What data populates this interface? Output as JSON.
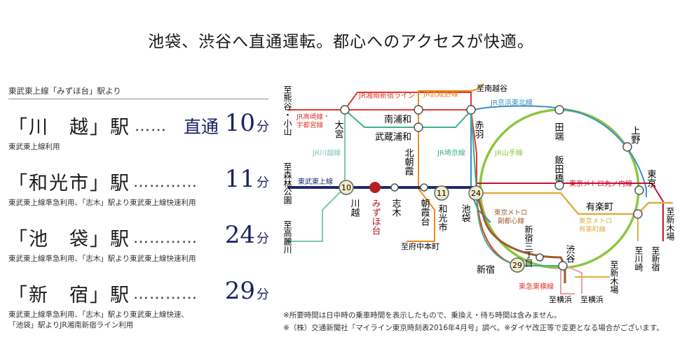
{
  "headline": "池袋、渋谷へ直通運転。都心へのアクセスが快適。",
  "lead": "東武東上線「みずほ台」駅より",
  "routes": [
    {
      "station": "「川　越」駅",
      "dots": "……",
      "tag": "直通",
      "time": "10",
      "unit": "分",
      "notes": [
        "東武東上線利用"
      ]
    },
    {
      "station": "「和光市」駅",
      "dots": "…………",
      "tag": "",
      "time": "11",
      "unit": "分",
      "notes": [
        "東武東上線準急利用、「志木」駅より東武東上線快速利用"
      ]
    },
    {
      "station": "「池　袋」駅",
      "dots": "…………",
      "tag": "",
      "time": "24",
      "unit": "分",
      "notes": [
        "東武東上線準急利用、「志木」駅より東武東上線快速利用"
      ]
    },
    {
      "station": "「新　宿」駅",
      "dots": "…………",
      "tag": "",
      "time": "29",
      "unit": "分",
      "notes": [
        "東武東上線準急利用、「志木」駅より東武東上線快速、",
        "「池袋」駅よりJR湘南新宿ライン利用"
      ]
    }
  ],
  "footnotes": [
    "※所要時間は日中時の乗車時間を表示したもので、乗換え・待ち時間は含みません。",
    "※（株）交通新聞社「マイライン東京時刻表2016年4月号」調べ。※ダイヤ改正等で変更となる場合がございます。"
  ],
  "map": {
    "colors": {
      "tobu": "#1d2a6b",
      "yamanote": "#8cc63f",
      "shonan": "#e03a2f",
      "musashino": "#f08a1e",
      "keihin": "#3a8fc6",
      "saikyo": "#3fb08a",
      "kawagoe": "#7fc3b8",
      "takasaki": "#e03a2f",
      "marunouchi": "#c8102e",
      "yurakucho": "#d9b040",
      "fukutoshin": "#9c5b2e",
      "toyoko": "#e8a19a",
      "mizuhodai": "#b22222",
      "stroke_station": "#555555",
      "badge_fill": "#f1ebc8"
    },
    "line_labels": {
      "shonan": "JR湘南新宿ライン",
      "musashino": "JR武蔵野線",
      "keihin": "JR京浜東北線",
      "takasaki": "JR高崎線・宇都宮線",
      "takasaki_1": "JR高崎線・",
      "takasaki_2": "宇都宮線",
      "kawagoe": "JR川越線",
      "saikyo": "JR埼京線",
      "yamanote": "JR山手線",
      "tobu": "東武東上線",
      "marunouchi": "東京メトロ丸ノ内線",
      "fukutoshin": "東京メトロ副都心線",
      "fukutoshin_1": "東京メトロ",
      "fukutoshin_2": "副都心線",
      "yurakucho": "東京メトロ有楽町線",
      "yurakucho_1": "東京メトロ",
      "yurakucho_2": "有楽町線",
      "toyoko": "東急東横線"
    },
    "stations": {
      "omiya": "大宮",
      "minamiurawa": "南浦和",
      "musashiurawa": "武蔵浦和",
      "akabane": "赤羽",
      "kitaasaka": "北朝霞",
      "asakadai": "朝霞台",
      "kawagoe": "川越",
      "mizuhodai": "みずほ台",
      "shiki": "志木",
      "wakoshi": "和光市",
      "ikebukuro": "池袋",
      "tabata": "田端",
      "ueno": "上野",
      "iidabashi": "飯田橋",
      "tokyo": "東京",
      "yurakucho": "有楽町",
      "shinjuku3": "新宿三丁目",
      "shibuya": "渋谷",
      "shinjuku": "新宿"
    },
    "destinations": {
      "kumagaya": "至熊谷・小山",
      "shinrin": "至森林公園",
      "komagawa": "至高麗川",
      "minamikoshigaya": "至南越谷",
      "fuchu": "至府中本町",
      "shinkiba_e": "至新木場",
      "kawasaki": "至川崎",
      "shinjuku_s": "至新宿",
      "yokohama1": "至横浜",
      "yokohama2": "至横浜",
      "shinkiba_s": "至新木場"
    },
    "badges": {
      "kawagoe": "10",
      "wakoshi": "11",
      "ikebukuro": "24",
      "shinjuku": "29"
    }
  }
}
